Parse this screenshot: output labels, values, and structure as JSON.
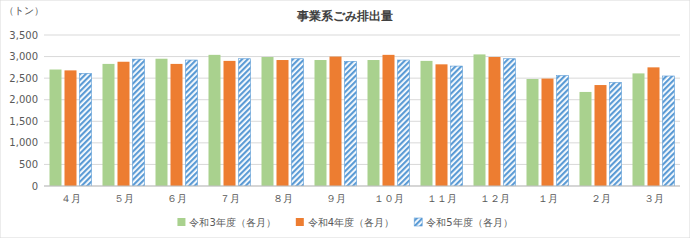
{
  "chart_data": {
    "type": "bar",
    "title": "事業系ごみ排出量",
    "y_label": "（トン）",
    "categories": [
      "４月",
      "５月",
      "６月",
      "７月",
      "８月",
      "９月",
      "１０月",
      "１１月",
      "１２月",
      "１月",
      "２月",
      "３月"
    ],
    "series": [
      {
        "name": "令和3年度（各月）",
        "color": "#a9d18e",
        "values": [
          2700,
          2830,
          2950,
          3040,
          2990,
          2920,
          2920,
          2900,
          3050,
          2480,
          2180,
          2610
        ]
      },
      {
        "name": "令和4年度（各月）",
        "color": "#ed7d31",
        "values": [
          2680,
          2880,
          2830,
          2900,
          2920,
          3000,
          3040,
          2820,
          2990,
          2490,
          2340,
          2750
        ]
      },
      {
        "name": "令和5年度（各月）",
        "color": "#5b9bd5",
        "values": [
          2610,
          2940,
          2920,
          2950,
          2950,
          2890,
          2920,
          2780,
          2950,
          2560,
          2400,
          2550
        ]
      }
    ],
    "ylim": [
      0,
      3500
    ],
    "yticks": [
      0,
      500,
      {
        "value": 1000,
        "label": "1,000"
      },
      {
        "value": 1500,
        "label": "1,500"
      },
      {
        "value": 2000,
        "label": "2,000"
      },
      {
        "value": 2500,
        "label": "2,500"
      },
      {
        "value": 3000,
        "label": "3,000"
      },
      {
        "value": 3500,
        "label": "3,500"
      }
    ],
    "grid": true,
    "legend": "bottom"
  }
}
